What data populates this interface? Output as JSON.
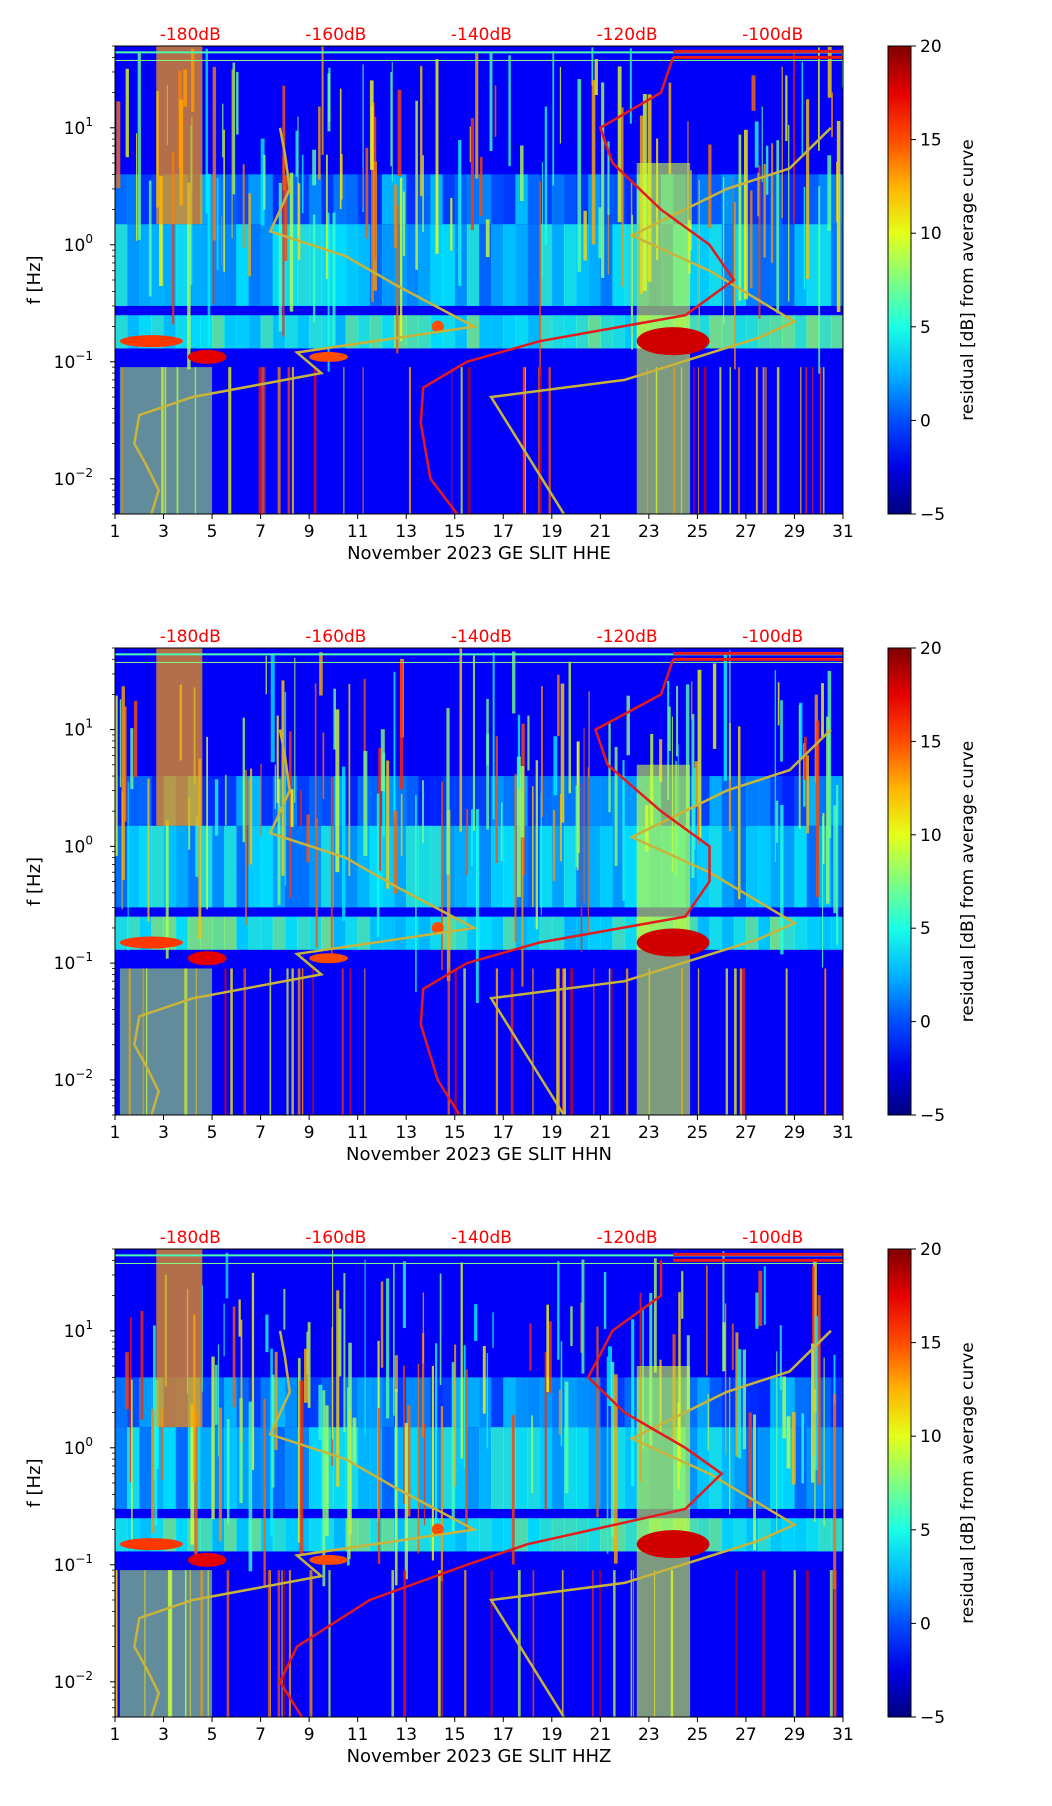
{
  "figure": {
    "colorbar_label": "residual [dB] from average curve",
    "colorbar_ticks": [
      "20",
      "15",
      "10",
      "5",
      "0",
      "−5"
    ],
    "colorbar_range": [
      -5,
      20
    ],
    "colors": {
      "top_axis_text": "#ff0000",
      "psd_curve": "#e41a1c",
      "noise_model_curve": "#c8b43a",
      "cmap": "jet"
    }
  },
  "chart_data": [
    {
      "type": "heatmap",
      "component": "HHE",
      "xlabel": "November 2023 GE SLIT  HHE",
      "ylabel": "f [Hz]",
      "x_ticks": [
        "1",
        "3",
        "5",
        "7",
        "9",
        "11",
        "13",
        "15",
        "17",
        "19",
        "21",
        "23",
        "25",
        "27",
        "29",
        "31"
      ],
      "y_ticks": [
        {
          "base": "10",
          "exp": "1",
          "value": 10
        },
        {
          "base": "10",
          "exp": "0",
          "value": 1
        },
        {
          "base": "10",
          "exp": "−1",
          "value": 0.1
        },
        {
          "base": "10",
          "exp": "−2",
          "value": 0.01
        }
      ],
      "top_ticks": [
        "-180dB",
        "-160dB",
        "-140dB",
        "-120dB",
        "-100dB"
      ],
      "xlim": [
        1,
        31
      ],
      "ylim_hz": [
        0.005,
        50
      ],
      "noise_model_curve": {
        "freq_hz": [
          10,
          6,
          3,
          1.3,
          0.8,
          0.45,
          0.2,
          0.12,
          0.08,
          0.05,
          0.035,
          0.02,
          0.013,
          0.008,
          0.005
        ],
        "day": [
          7.8,
          8.0,
          8.2,
          7.4,
          10.5,
          12.6,
          15.8,
          8.5,
          9.5,
          4.2,
          2.0,
          1.8,
          2.3,
          2.8,
          2.5
        ]
      },
      "psd_curve": {
        "freq_hz": [
          40,
          20,
          10,
          5,
          2,
          1,
          0.5,
          0.25,
          0.15,
          0.1,
          0.06,
          0.03,
          0.01,
          0.005
        ],
        "day": [
          24,
          23.5,
          21.0,
          21.5,
          23.5,
          25.5,
          26.5,
          24.5,
          18.5,
          15.5,
          13.7,
          13.6,
          14.0,
          15.1
        ]
      }
    },
    {
      "type": "heatmap",
      "component": "HHN",
      "xlabel": "November 2023 GE SLIT  HHN",
      "ylabel": "f [Hz]",
      "x_ticks": [
        "1",
        "3",
        "5",
        "7",
        "9",
        "11",
        "13",
        "15",
        "17",
        "19",
        "21",
        "23",
        "25",
        "27",
        "29",
        "31"
      ],
      "y_ticks": [
        {
          "base": "10",
          "exp": "1",
          "value": 10
        },
        {
          "base": "10",
          "exp": "0",
          "value": 1
        },
        {
          "base": "10",
          "exp": "−1",
          "value": 0.1
        },
        {
          "base": "10",
          "exp": "−2",
          "value": 0.01
        }
      ],
      "top_ticks": [
        "-180dB",
        "-160dB",
        "-140dB",
        "-120dB",
        "-100dB"
      ],
      "xlim": [
        1,
        31
      ],
      "ylim_hz": [
        0.005,
        50
      ],
      "noise_model_curve": {
        "freq_hz": [
          10,
          6,
          3,
          1.3,
          0.8,
          0.45,
          0.2,
          0.12,
          0.08,
          0.05,
          0.035,
          0.02,
          0.013,
          0.008,
          0.005
        ],
        "day": [
          7.8,
          8.0,
          8.2,
          7.4,
          10.5,
          12.6,
          15.8,
          8.5,
          9.5,
          4.2,
          2.0,
          1.8,
          2.3,
          2.8,
          2.5
        ]
      },
      "psd_curve": {
        "freq_hz": [
          40,
          20,
          10,
          5,
          2,
          1,
          0.5,
          0.25,
          0.15,
          0.1,
          0.06,
          0.03,
          0.01,
          0.005
        ],
        "day": [
          24,
          23.5,
          20.8,
          21.3,
          23.5,
          25.5,
          25.5,
          24.5,
          18.5,
          15.5,
          13.7,
          13.6,
          14.3,
          15.2
        ]
      }
    },
    {
      "type": "heatmap",
      "component": "HHZ",
      "xlabel": "November 2023 GE SLIT  HHZ",
      "ylabel": "f [Hz]",
      "x_ticks": [
        "1",
        "3",
        "5",
        "7",
        "9",
        "11",
        "13",
        "15",
        "17",
        "19",
        "21",
        "23",
        "25",
        "27",
        "29",
        "31"
      ],
      "y_ticks": [
        {
          "base": "10",
          "exp": "1",
          "value": 10
        },
        {
          "base": "10",
          "exp": "0",
          "value": 1
        },
        {
          "base": "10",
          "exp": "−1",
          "value": 0.1
        },
        {
          "base": "10",
          "exp": "−2",
          "value": 0.01
        }
      ],
      "top_ticks": [
        "-180dB",
        "-160dB",
        "-140dB",
        "-120dB",
        "-100dB"
      ],
      "xlim": [
        1,
        31
      ],
      "ylim_hz": [
        0.005,
        50
      ],
      "noise_model_curve": {
        "freq_hz": [
          10,
          6,
          3,
          1.3,
          0.8,
          0.45,
          0.2,
          0.12,
          0.08,
          0.05,
          0.035,
          0.02,
          0.013,
          0.008,
          0.005
        ],
        "day": [
          7.8,
          8.0,
          8.2,
          7.4,
          10.5,
          12.6,
          15.8,
          8.5,
          9.5,
          4.2,
          2.0,
          1.8,
          2.3,
          2.8,
          2.5
        ]
      },
      "psd_curve": {
        "freq_hz": [
          40,
          20,
          10,
          4,
          2,
          1,
          0.6,
          0.3,
          0.15,
          0.1,
          0.05,
          0.02,
          0.01,
          0.005
        ],
        "day": [
          23.5,
          23.5,
          21.5,
          20.5,
          22.0,
          24.5,
          26.0,
          24.5,
          18.0,
          15.5,
          11.5,
          8.5,
          7.8,
          8.7
        ]
      }
    }
  ]
}
